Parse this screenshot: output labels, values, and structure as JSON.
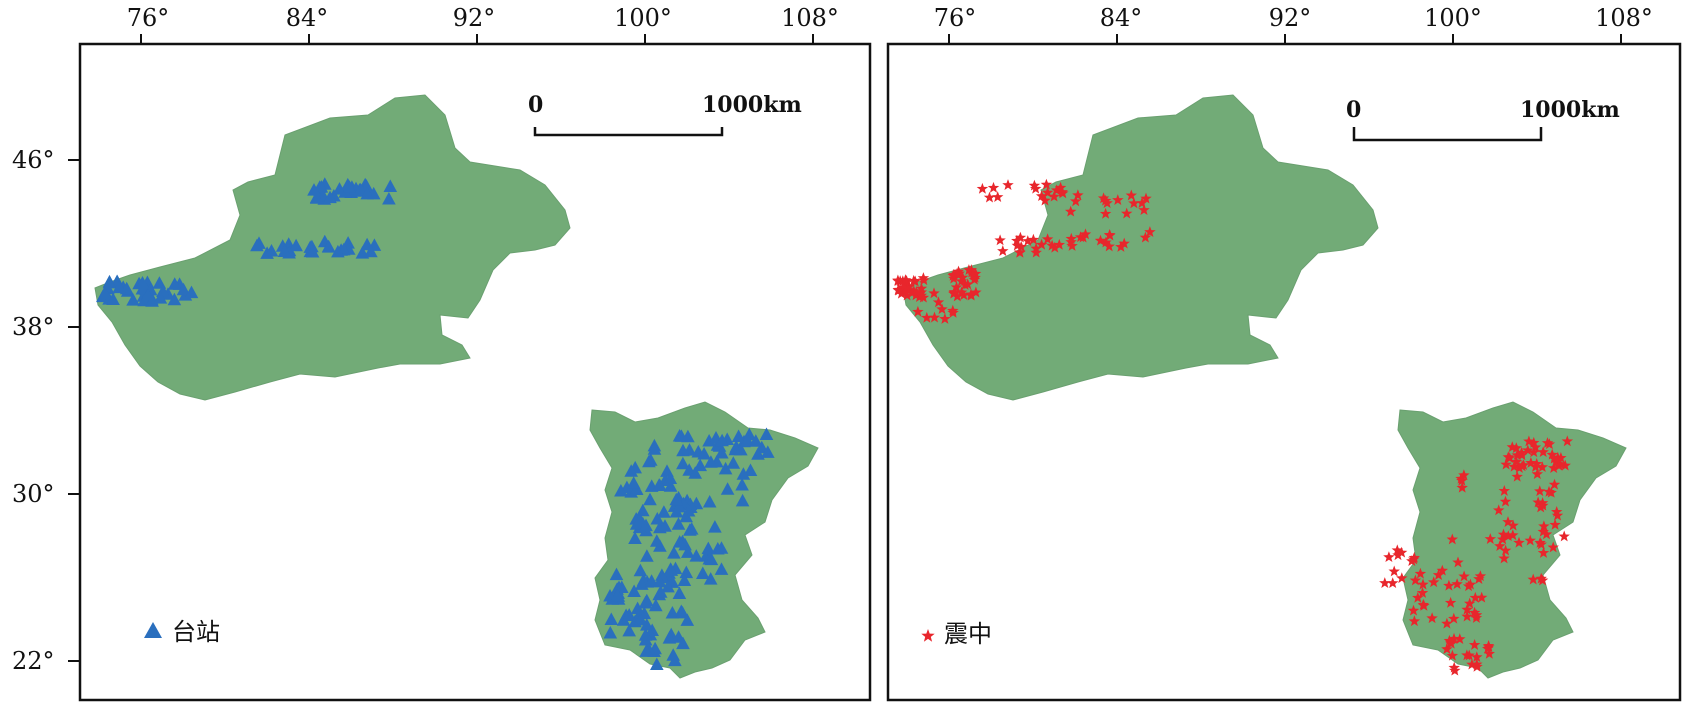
{
  "colors": {
    "region_fill": "#72ab77",
    "station_marker": "#2a6fbe",
    "epicenter_marker": "#e8262c",
    "frame": "#111111"
  },
  "map_axes": {
    "longitude_ticks": [
      "76°",
      "84°",
      "92°",
      "100°",
      "108°"
    ],
    "latitude_ticks": [
      "46°",
      "38°",
      "30°",
      "22°"
    ]
  },
  "panels": [
    {
      "scale_bar": {
        "start_label": "0",
        "end_label": "1000km"
      },
      "legend": {
        "label": "台站",
        "icon": "triangle-icon"
      }
    },
    {
      "scale_bar": {
        "start_label": "0",
        "end_label": "1000km"
      },
      "legend": {
        "label": "震中",
        "icon": "star-icon"
      }
    }
  ]
}
